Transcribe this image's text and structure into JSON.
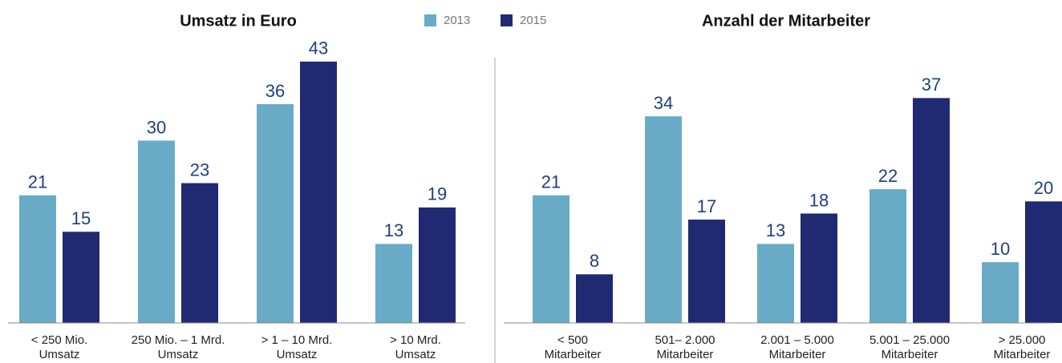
{
  "chart_data": [
    {
      "type": "bar",
      "title": "Umsatz in Euro",
      "categories": [
        [
          "< 250 Mio.",
          "Umsatz"
        ],
        [
          "250 Mio. – 1 Mrd.",
          "Umsatz"
        ],
        [
          "> 1 – 10 Mrd.",
          "Umsatz"
        ],
        [
          "> 10 Mrd.",
          "Umsatz"
        ]
      ],
      "series": [
        {
          "name": "2013",
          "color": "#69abc7",
          "values": [
            21,
            30,
            36,
            13
          ]
        },
        {
          "name": "2015",
          "color": "#1f2a72",
          "values": [
            15,
            23,
            43,
            19
          ]
        }
      ],
      "ylim": [
        0,
        53
      ]
    },
    {
      "type": "bar",
      "title": "Anzahl der Mitarbeiter",
      "categories": [
        [
          "< 500",
          "Mitarbeiter"
        ],
        [
          "501– 2.000",
          "Mitarbeiter"
        ],
        [
          "2.001 – 5.000",
          "Mitarbeiter"
        ],
        [
          "5.001 – 25.000",
          "Mitarbeiter"
        ],
        [
          "> 25.000",
          "Mitarbeiter"
        ]
      ],
      "series": [
        {
          "values": [
            21,
            34,
            13,
            22,
            10
          ]
        },
        {
          "values": [
            8,
            17,
            18,
            37,
            20
          ]
        }
      ],
      "ylim": [
        0,
        53
      ]
    }
  ]
}
